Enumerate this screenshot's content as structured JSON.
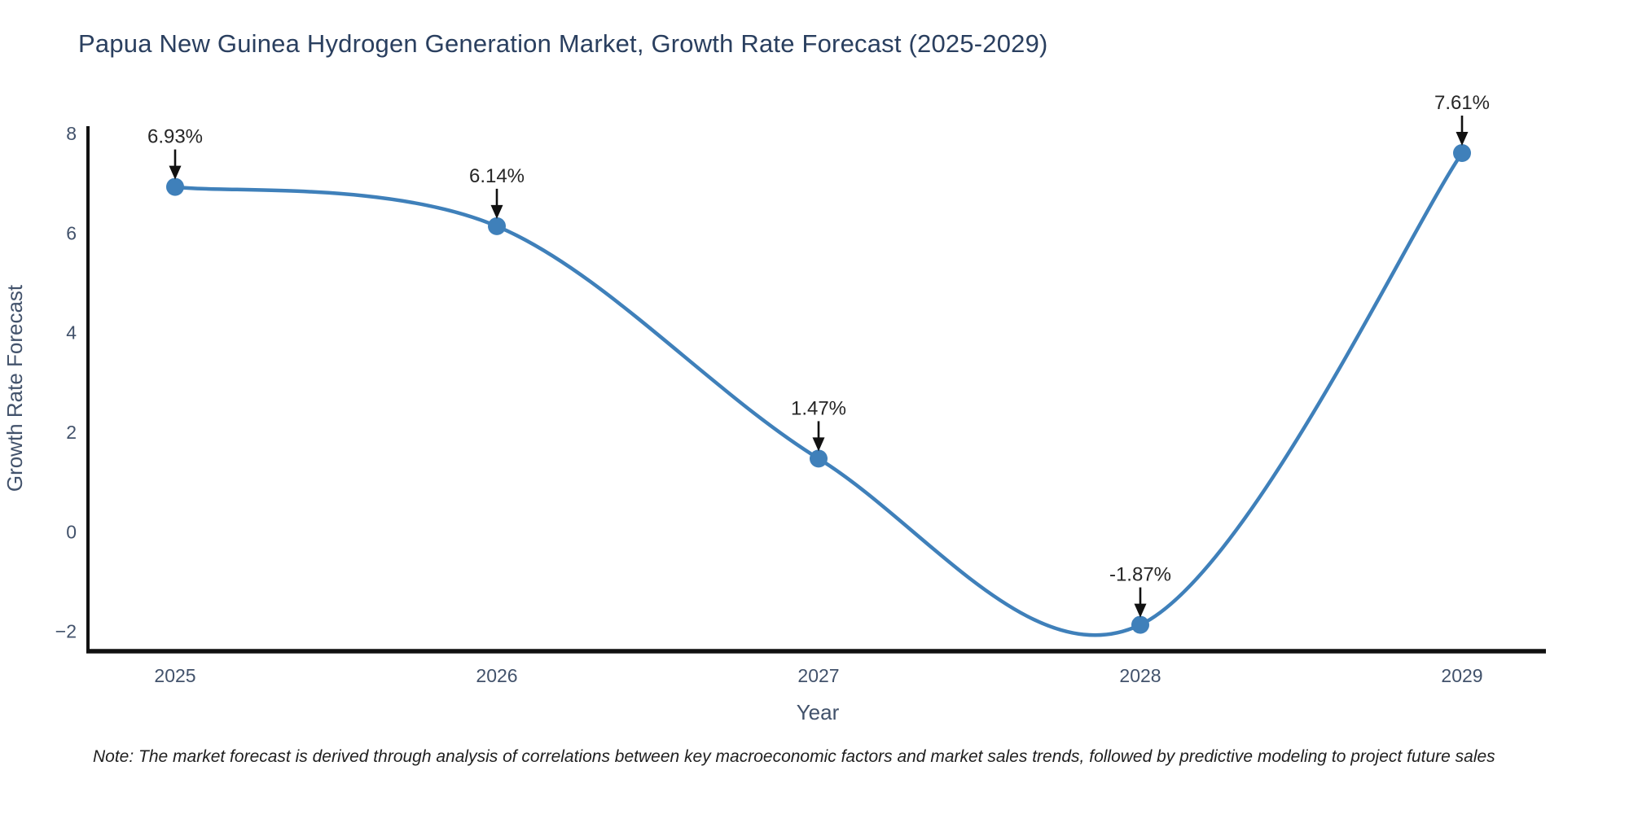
{
  "title": "Papua New Guinea Hydrogen Generation Market, Growth Rate Forecast (2025-2029)",
  "note": "Note: The market forecast is derived through analysis of correlations between key macroeconomic factors and market sales trends, followed by predictive modeling to project future sales",
  "chart_data": {
    "type": "line",
    "title": "Papua New Guinea Hydrogen Generation Market, Growth Rate Forecast (2025-2029)",
    "categories": [
      "2025",
      "2026",
      "2027",
      "2028",
      "2029"
    ],
    "values": [
      6.93,
      6.14,
      1.47,
      -1.87,
      7.61
    ],
    "point_labels": [
      "6.93%",
      "6.14%",
      "1.47%",
      "-1.87%",
      "7.61%"
    ],
    "xlabel": "Year",
    "ylabel": "Growth Rate Forecast",
    "yticks": [
      8,
      6,
      4,
      2,
      0,
      -2
    ],
    "ylim": [
      -2.4,
      8.15
    ],
    "line_shape": "spline",
    "grid": false,
    "legend": "none",
    "colors": {
      "line": "#3f80ba",
      "marker": "#3f80ba",
      "axis_text": "#42526b",
      "title_text": "#2a3f5f",
      "annotation_text": "#262626",
      "arrow": "#111111",
      "spine": "#111111",
      "background": "#ffffff"
    }
  }
}
